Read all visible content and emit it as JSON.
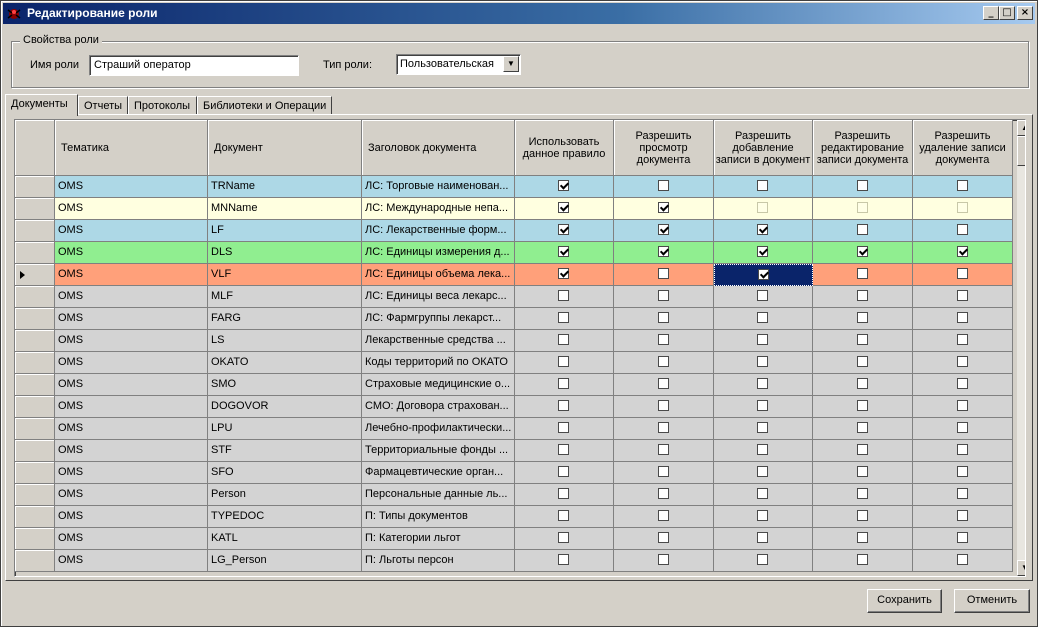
{
  "window": {
    "title": "Редактирование роли",
    "controls": [
      "minimize-icon",
      "maximize-icon",
      "close-icon"
    ]
  },
  "role_props": {
    "legend": "Свойства роли",
    "name_label": "Имя роли",
    "name_value": "Страший оператор",
    "type_label": "Тип роли:",
    "type_value": "Пользовательская"
  },
  "tabs": [
    {
      "label": "Документы",
      "active": true
    },
    {
      "label": "Отчеты",
      "active": false
    },
    {
      "label": "Протоколы",
      "active": false
    },
    {
      "label": "Библиотеки и Операции",
      "active": false
    }
  ],
  "grid": {
    "columns": [
      "Тематика",
      "Документ",
      "Заголовок документа",
      "Использовать данное правило",
      "Разрешить просмотр документа",
      "Разрешить добавление записи в документ",
      "Разрешить редактирование записи документа",
      "Разрешить удаление записи документа"
    ],
    "colors": {
      "blue": "#add8e6",
      "cream": "#ffffe0",
      "green": "#90ee90",
      "salmon": "#ffa07a",
      "gray": "#d3d3d3"
    },
    "rows": [
      {
        "t": "OMS",
        "d": "TRName",
        "h": "ЛС: Торговые наименован...",
        "c": [
          1,
          0,
          0,
          0,
          0
        ],
        "color": "blue"
      },
      {
        "t": "OMS",
        "d": "MNName",
        "h": "ЛС: Международные непа...",
        "c": [
          1,
          1,
          0,
          0,
          0
        ],
        "color": "cream"
      },
      {
        "t": "OMS",
        "d": "LF",
        "h": "ЛС: Лекарственные форм...",
        "c": [
          1,
          1,
          1,
          0,
          0
        ],
        "color": "blue"
      },
      {
        "t": "OMS",
        "d": "DLS",
        "h": "ЛС: Единицы измерения д...",
        "c": [
          1,
          1,
          1,
          1,
          1
        ],
        "color": "green"
      },
      {
        "t": "OMS",
        "d": "VLF",
        "h": "ЛС: Единицы объема лека...",
        "c": [
          1,
          0,
          1,
          0,
          0
        ],
        "color": "salmon",
        "current": true
      },
      {
        "t": "OMS",
        "d": "MLF",
        "h": "ЛС: Единицы веса лекарс...",
        "c": [
          0,
          0,
          0,
          0,
          0
        ],
        "color": "gray"
      },
      {
        "t": "OMS",
        "d": "FARG",
        "h": "ЛС: Фармгруппы лекарст...",
        "c": [
          0,
          0,
          0,
          0,
          0
        ],
        "color": "gray"
      },
      {
        "t": "OMS",
        "d": "LS",
        "h": "Лекарственные средства ...",
        "c": [
          0,
          0,
          0,
          0,
          0
        ],
        "color": "gray"
      },
      {
        "t": "OMS",
        "d": "OKATO",
        "h": "Коды территорий по ОКАТО",
        "c": [
          0,
          0,
          0,
          0,
          0
        ],
        "color": "gray"
      },
      {
        "t": "OMS",
        "d": "SMO",
        "h": "Страховые медицинские о...",
        "c": [
          0,
          0,
          0,
          0,
          0
        ],
        "color": "gray"
      },
      {
        "t": "OMS",
        "d": "DOGOVOR",
        "h": "СМО: Договора страхован...",
        "c": [
          0,
          0,
          0,
          0,
          0
        ],
        "color": "gray"
      },
      {
        "t": "OMS",
        "d": "LPU",
        "h": "Лечебно-профилактически...",
        "c": [
          0,
          0,
          0,
          0,
          0
        ],
        "color": "gray"
      },
      {
        "t": "OMS",
        "d": "STF",
        "h": "Территориальные фонды ...",
        "c": [
          0,
          0,
          0,
          0,
          0
        ],
        "color": "gray"
      },
      {
        "t": "OMS",
        "d": "SFO",
        "h": "Фармацевтические орган...",
        "c": [
          0,
          0,
          0,
          0,
          0
        ],
        "color": "gray"
      },
      {
        "t": "OMS",
        "d": "Person",
        "h": "Персональные данные ль...",
        "c": [
          0,
          0,
          0,
          0,
          0
        ],
        "color": "gray"
      },
      {
        "t": "OMS",
        "d": "TYPEDOC",
        "h": "П: Типы документов",
        "c": [
          0,
          0,
          0,
          0,
          0
        ],
        "color": "gray"
      },
      {
        "t": "OMS",
        "d": "KATL",
        "h": "П: Категории льгот",
        "c": [
          0,
          0,
          0,
          0,
          0
        ],
        "color": "gray"
      },
      {
        "t": "OMS",
        "d": "LG_Person",
        "h": "П: Льготы персон",
        "c": [
          0,
          0,
          0,
          0,
          0
        ],
        "color": "gray"
      }
    ]
  },
  "footer": {
    "save_label": "Сохранить",
    "cancel_label": "Отменить"
  }
}
